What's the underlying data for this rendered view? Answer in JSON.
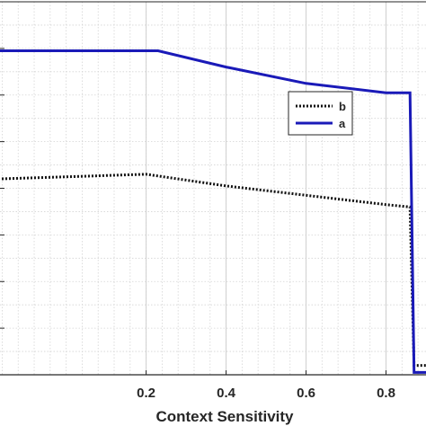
{
  "chart_data": {
    "type": "line",
    "xlabel": "Context Sensitivity",
    "ylabel": "",
    "xlim": [
      -0.17,
      0.9
    ],
    "x_ticks": [
      0.2,
      0.4,
      0.6,
      0.8
    ],
    "x_tick_labels": [
      "0.2",
      "0.4",
      "0.6",
      "0.8"
    ],
    "y_ticks_major": [
      0,
      1,
      2,
      3,
      4,
      5,
      6,
      7,
      8
    ],
    "grid": true,
    "legend_position": "upper-right",
    "series": [
      {
        "name": "b",
        "style": "dotted",
        "color": "#111111",
        "points": [
          [
            -0.17,
            4.2
          ],
          [
            0.2,
            4.3
          ],
          [
            0.4,
            4.05
          ],
          [
            0.6,
            3.85
          ],
          [
            0.8,
            3.65
          ],
          [
            0.86,
            3.6
          ],
          [
            0.87,
            0.2
          ],
          [
            0.9,
            0.2
          ]
        ]
      },
      {
        "name": "a",
        "style": "solid",
        "color": "#1a1ab8",
        "points": [
          [
            -0.17,
            6.95
          ],
          [
            0.23,
            6.95
          ],
          [
            0.4,
            6.6
          ],
          [
            0.6,
            6.25
          ],
          [
            0.8,
            6.05
          ],
          [
            0.86,
            6.05
          ],
          [
            0.87,
            0.05
          ],
          [
            0.9,
            0.05
          ]
        ]
      }
    ]
  }
}
